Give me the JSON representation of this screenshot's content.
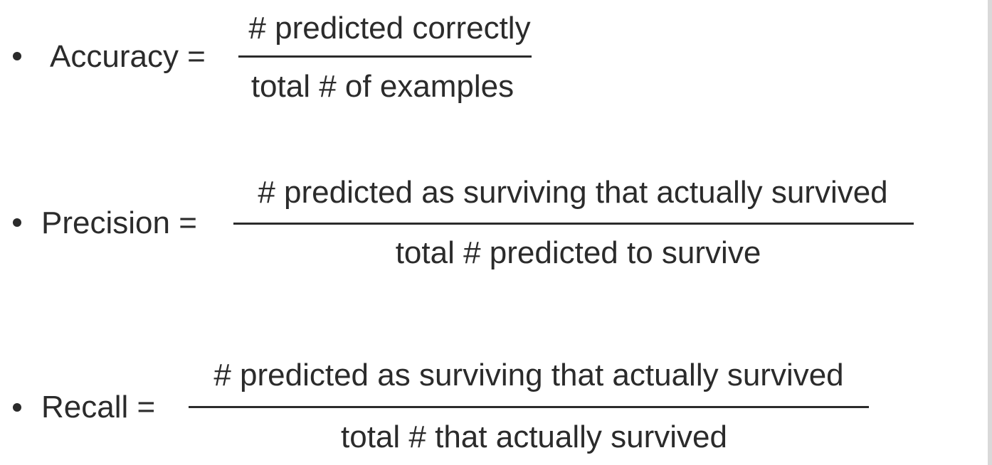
{
  "formulas": [
    {
      "label": "Accuracy =",
      "numerator": "# predicted correctly",
      "denominator": "total # of examples"
    },
    {
      "label": "Precision =",
      "numerator": "# predicted as surviving that actually survived",
      "denominator": "total # predicted to survive"
    },
    {
      "label": "Recall =",
      "numerator": "# predicted as surviving that actually survived",
      "denominator": "total # that actually survived"
    }
  ],
  "colors": {
    "text": "#2b2b2b",
    "background": "#ffffff"
  }
}
